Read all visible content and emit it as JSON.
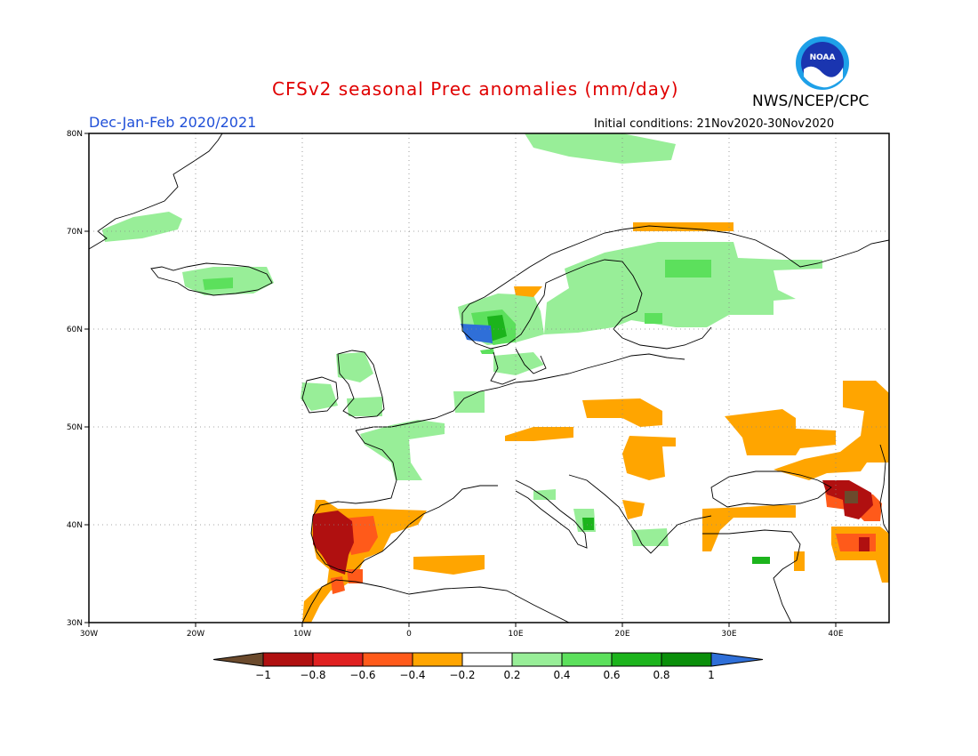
{
  "header": {
    "title": "CFSv2 seasonal Prec anomalies (mm/day)",
    "season": "Dec-Jan-Feb 2020/2021",
    "initial_conditions": "Initial conditions: 21Nov2020-30Nov2020",
    "agency": "NWS/NCEP/CPC",
    "logo_text": "NOAA",
    "logo_icon": "noaa-logo-icon"
  },
  "map": {
    "lon_range": [
      -30,
      45
    ],
    "lat_range": [
      30,
      80
    ],
    "x_ticks": [
      "30W",
      "20W",
      "10W",
      "0",
      "10E",
      "20E",
      "30E",
      "40E"
    ],
    "y_ticks": [
      "80N",
      "70N",
      "60N",
      "50N",
      "40N",
      "30N"
    ]
  },
  "colorbar": {
    "labels": [
      "-1",
      "-0.8",
      "-0.6",
      "-0.4",
      "-0.2",
      "0.2",
      "0.4",
      "0.6",
      "0.8",
      "1"
    ],
    "colors": [
      "#6b4a2c",
      "#b01010",
      "#e02020",
      "#ff5a1a",
      "#ffa500",
      "#ffffff",
      "#98ee98",
      "#5ce05c",
      "#1cb41c",
      "#0a8f0a",
      "#2f6fd8"
    ]
  }
}
